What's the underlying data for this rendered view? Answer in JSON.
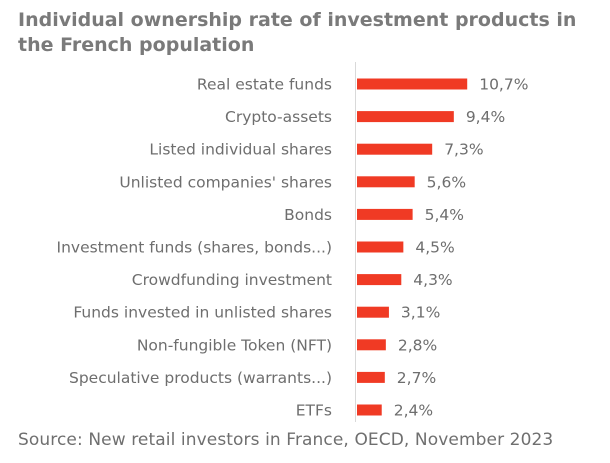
{
  "chart_data": {
    "type": "bar",
    "orientation": "horizontal",
    "title": "Individual ownership rate of investment products in the French population",
    "xlabel": "",
    "ylabel": "",
    "unit": "%",
    "categories": [
      "Real estate funds",
      "Crypto-assets",
      "Listed individual shares",
      "Unlisted companies' shares",
      "Bonds",
      "Investment funds (shares, bonds...)",
      "Crowdfunding investment",
      "Funds invested in unlisted shares",
      "Non-fungible Token (NFT)",
      "Speculative products (warrants...)",
      "ETFs"
    ],
    "values": [
      10.7,
      9.4,
      7.3,
      5.6,
      5.4,
      4.5,
      4.3,
      3.1,
      2.8,
      2.7,
      2.4
    ],
    "value_labels": [
      "10,7%",
      "9,4%",
      "7,3%",
      "5,6%",
      "5,4%",
      "4,5%",
      "4,3%",
      "3,1%",
      "2,8%",
      "2,7%",
      "2,4%"
    ],
    "xlim": [
      0,
      12
    ],
    "grid": false,
    "legend": "none",
    "bar_color": "#f03a24",
    "source": "Source: New retail investors in France, OECD, November 2023"
  }
}
